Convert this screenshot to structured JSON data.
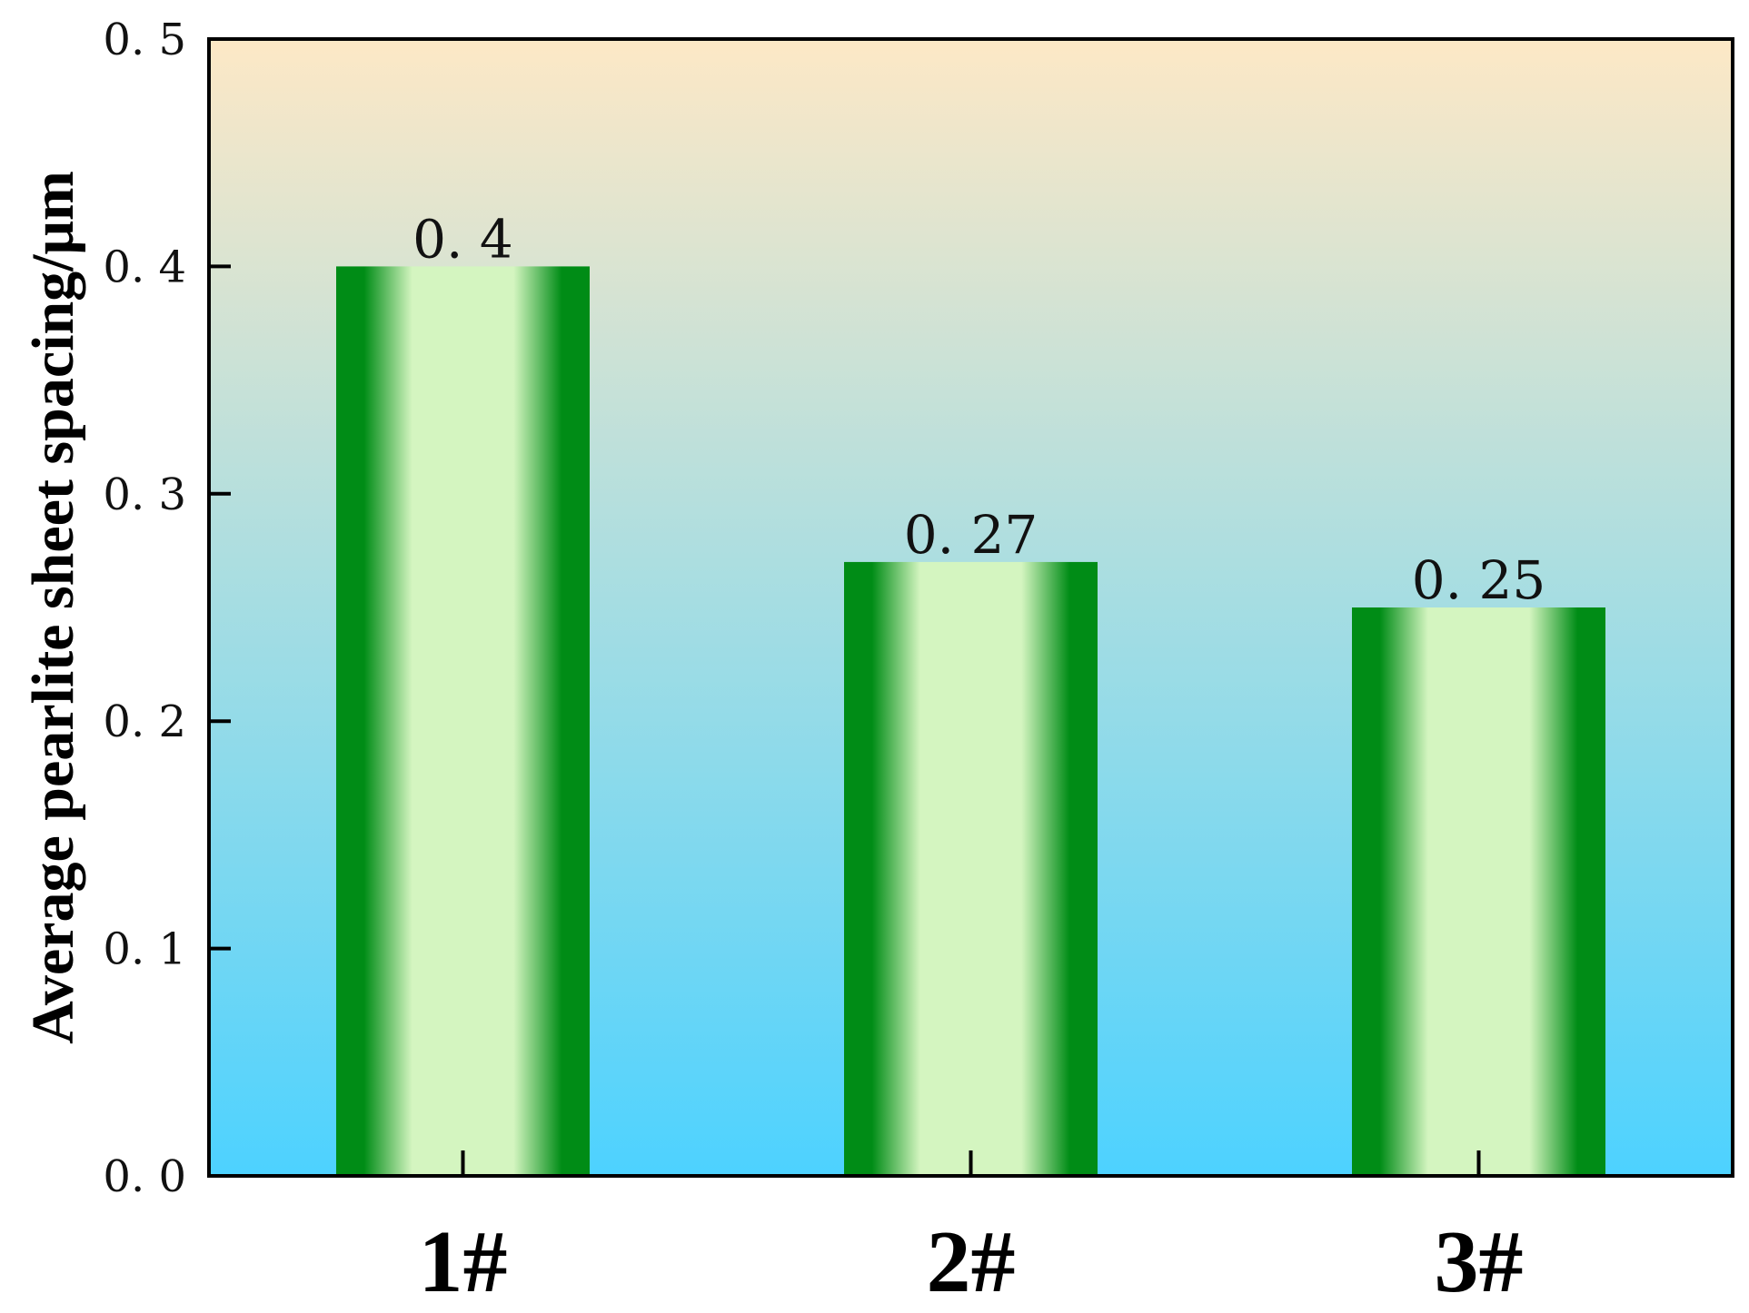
{
  "chart_data": {
    "type": "bar",
    "title": "",
    "xlabel": "",
    "ylabel": "Average pearlite sheet spacing/μm",
    "categories": [
      "1#",
      "2#",
      "3#"
    ],
    "values": [
      0.4,
      0.27,
      0.25
    ],
    "value_labels": [
      "0. 4",
      "0. 27",
      "0. 25"
    ],
    "ylim": [
      0,
      0.5
    ],
    "yticks": [
      0.0,
      0.1,
      0.2,
      0.3,
      0.4,
      0.5
    ],
    "ytick_labels": [
      "0. 0",
      "0. 1",
      "0. 2",
      "0. 3",
      "0. 4",
      "0. 5"
    ],
    "grid": false,
    "legend": "none",
    "colors": {
      "background_top": "#fde8c6",
      "background_bottom": "#4dd2ff",
      "bar_edge": "#008c16",
      "bar_center": "#d4f5c0",
      "axis": "#000000"
    }
  }
}
